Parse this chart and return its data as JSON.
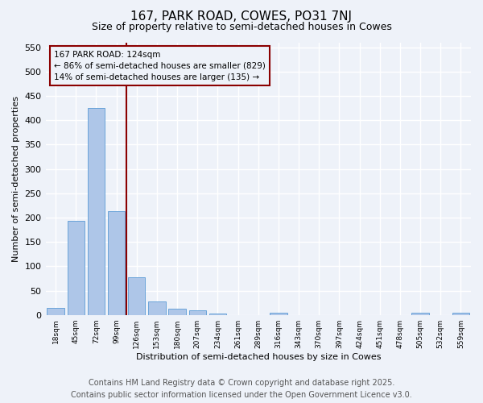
{
  "title": "167, PARK ROAD, COWES, PO31 7NJ",
  "subtitle": "Size of property relative to semi-detached houses in Cowes",
  "xlabel": "Distribution of semi-detached houses by size in Cowes",
  "ylabel": "Number of semi-detached properties",
  "categories": [
    "18sqm",
    "45sqm",
    "72sqm",
    "99sqm",
    "126sqm",
    "153sqm",
    "180sqm",
    "207sqm",
    "234sqm",
    "261sqm",
    "289sqm",
    "316sqm",
    "343sqm",
    "370sqm",
    "397sqm",
    "424sqm",
    "451sqm",
    "478sqm",
    "505sqm",
    "532sqm",
    "559sqm"
  ],
  "values": [
    14,
    193,
    425,
    213,
    77,
    27,
    12,
    9,
    3,
    0,
    0,
    4,
    0,
    0,
    0,
    0,
    0,
    0,
    4,
    0,
    5
  ],
  "bar_color": "#aec6e8",
  "bar_edge_color": "#5b9bd5",
  "vline_color": "#8b0000",
  "annotation_title": "167 PARK ROAD: 124sqm",
  "annotation_line1": "← 86% of semi-detached houses are smaller (829)",
  "annotation_line2": "14% of semi-detached houses are larger (135) →",
  "annotation_box_color": "#8b0000",
  "ylim": [
    0,
    560
  ],
  "yticks": [
    0,
    50,
    100,
    150,
    200,
    250,
    300,
    350,
    400,
    450,
    500,
    550
  ],
  "footer_line1": "Contains HM Land Registry data © Crown copyright and database right 2025.",
  "footer_line2": "Contains public sector information licensed under the Open Government Licence v3.0.",
  "bg_color": "#eef2f9",
  "grid_color": "#ffffff",
  "title_fontsize": 11,
  "subtitle_fontsize": 9,
  "footer_fontsize": 7
}
